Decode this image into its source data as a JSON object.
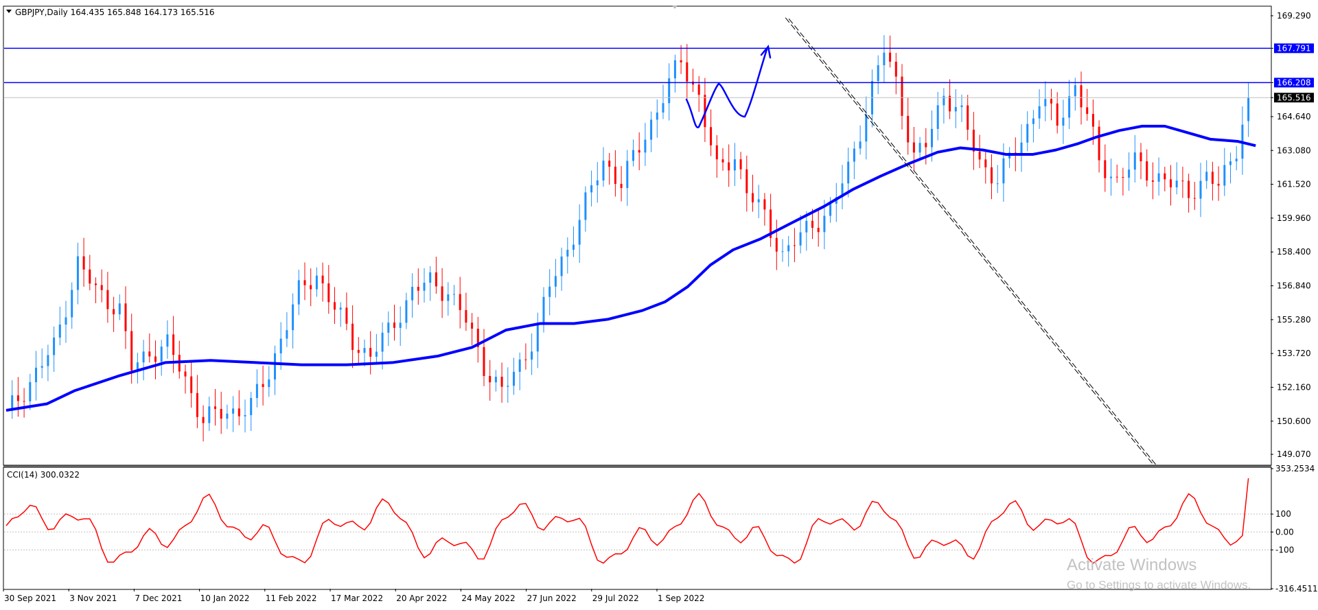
{
  "header": {
    "symbol_line": "GBPJPY,Daily  164.435 165.848 164.173 165.516"
  },
  "price_axis": {
    "ticks": [
      "169.290",
      "167.791",
      "166.208",
      "165.516",
      "164.640",
      "163.080",
      "161.520",
      "159.960",
      "158.400",
      "156.840",
      "155.280",
      "153.720",
      "152.160",
      "150.600",
      "149.070"
    ]
  },
  "indicator": {
    "label": "CCI(14) 300.0322",
    "ticks": [
      "353.2534",
      "100",
      "0.00",
      "-100",
      "-316.4511"
    ]
  },
  "time_axis": {
    "labels": [
      "30 Sep 2021",
      "3 Nov 2021",
      "7 Dec 2021",
      "10 Jan 2022",
      "11 Feb 2022",
      "17 Mar 2022",
      "20 Apr 2022",
      "24 May 2022",
      "27 Jun 2022",
      "29 Jul 2022",
      "1 Sep 2022"
    ]
  },
  "watermark": {
    "title": "Activate Windows",
    "subtitle": "Go to Settings to activate Windows."
  },
  "colors": {
    "bull": "#1e90ff",
    "bear": "#ff0000",
    "ma": "#0000ff",
    "levels": "#0000ff",
    "cci": "#ff0000",
    "drawing": "#0000ff",
    "trendline": "#000000",
    "current_price_tag": "#000000"
  },
  "chart_data": [
    {
      "type": "candlestick",
      "title": "",
      "symbol": "GBPJPY",
      "timeframe": "Daily",
      "ylim": [
        148.6,
        169.7
      ],
      "grid": false,
      "current_price": 165.516,
      "horizontal_levels": [
        167.791,
        166.208
      ],
      "moving_average_points": [
        [
          0,
          151.1
        ],
        [
          18,
          151.4
        ],
        [
          30,
          152.0
        ],
        [
          50,
          152.7
        ],
        [
          70,
          153.3
        ],
        [
          90,
          153.4
        ],
        [
          110,
          153.3
        ],
        [
          130,
          153.2
        ],
        [
          150,
          153.2
        ],
        [
          170,
          153.3
        ],
        [
          190,
          153.6
        ],
        [
          205,
          154.0
        ],
        [
          220,
          154.8
        ],
        [
          235,
          155.1
        ],
        [
          250,
          155.1
        ],
        [
          265,
          155.3
        ],
        [
          280,
          155.7
        ],
        [
          290,
          156.1
        ],
        [
          300,
          156.8
        ],
        [
          310,
          157.8
        ],
        [
          320,
          158.5
        ],
        [
          332,
          159.0
        ],
        [
          345,
          159.7
        ],
        [
          360,
          160.5
        ],
        [
          373,
          161.3
        ],
        [
          385,
          161.9
        ],
        [
          398,
          162.5
        ],
        [
          410,
          163.0
        ],
        [
          420,
          163.2
        ],
        [
          430,
          163.1
        ],
        [
          440,
          162.9
        ],
        [
          452,
          162.9
        ],
        [
          462,
          163.1
        ],
        [
          472,
          163.4
        ],
        [
          480,
          163.7
        ],
        [
          490,
          164.0
        ],
        [
          500,
          164.2
        ],
        [
          510,
          164.2
        ],
        [
          520,
          163.9
        ],
        [
          530,
          163.6
        ],
        [
          542,
          163.5
        ],
        [
          550,
          163.3
        ]
      ],
      "trendline": {
        "from": [
          343,
          169.2
        ],
        "to": [
          955,
          149.1
        ]
      },
      "candles_summary": {
        "open": 164.435,
        "high": 165.848,
        "low": 164.173,
        "close": 165.516
      }
    },
    {
      "type": "line",
      "name": "CCI(14)",
      "last_value": 300.0322,
      "ylim": [
        -316.4511,
        353.2534
      ],
      "levels": [
        100,
        0,
        -100
      ]
    }
  ]
}
